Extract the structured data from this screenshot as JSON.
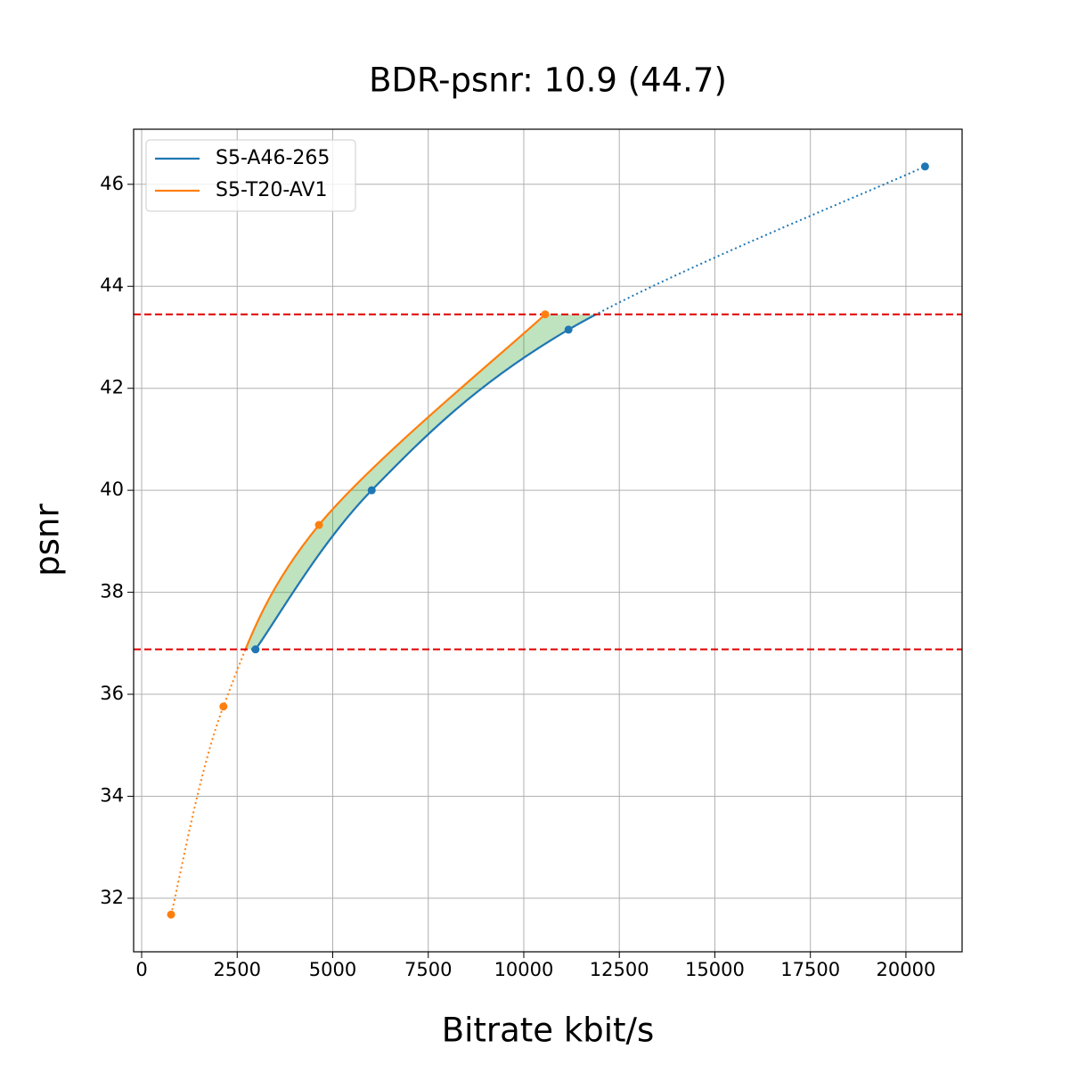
{
  "chart_data": {
    "type": "line",
    "title": "BDR-psnr: 10.9 (44.7)",
    "x_label": "Bitrate kbit/s",
    "y_label": "psnr",
    "series": [
      {
        "name": "S5-A46-265",
        "color": "#1f77b4",
        "x": [
          2980,
          6020,
          11170,
          20500
        ],
        "values": [
          36.88,
          40.0,
          43.15,
          46.35
        ]
      },
      {
        "name": "S5-T20-AV1",
        "color": "#ff7f0e",
        "x": [
          770,
          2140,
          4640,
          10560
        ],
        "values": [
          31.68,
          35.76,
          39.32,
          43.45
        ]
      }
    ],
    "xlim": [
      -210,
      21470
    ],
    "ylim": [
      30.95,
      47.08
    ],
    "xticks": [
      0,
      2500,
      5000,
      7500,
      10000,
      12500,
      15000,
      17500,
      20000
    ],
    "yticks": [
      32,
      34,
      36,
      38,
      40,
      42,
      44,
      46
    ],
    "grid": true,
    "legend": "upper-left",
    "fill_color": "#2ca02c",
    "hline_color": "#e00000"
  }
}
